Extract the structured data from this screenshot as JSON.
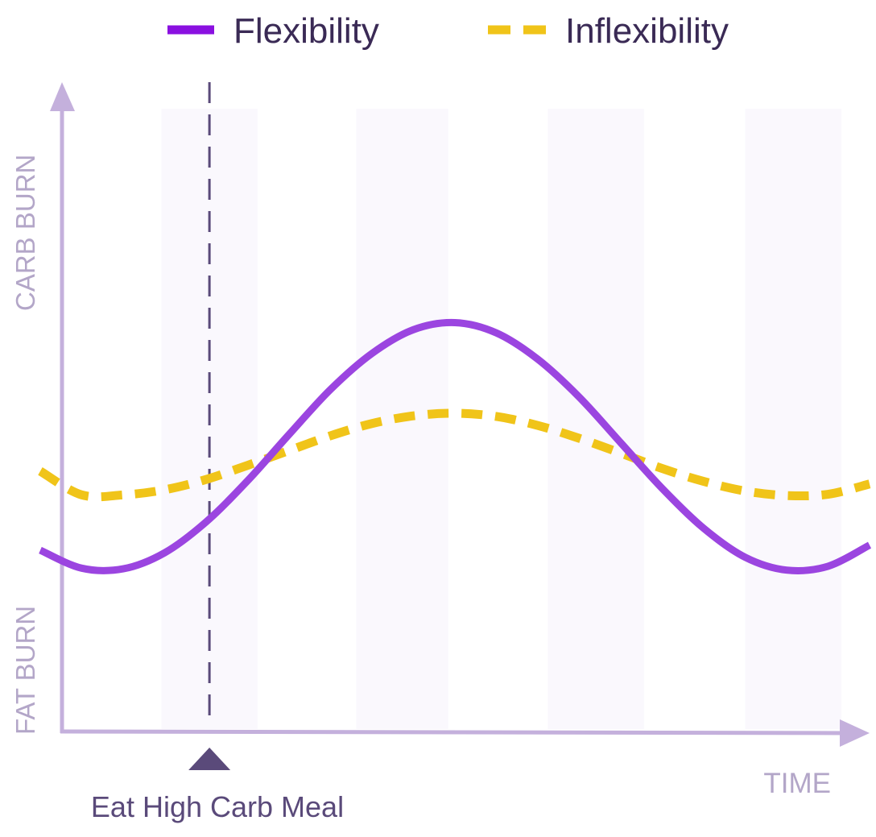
{
  "chart_data": {
    "type": "line",
    "title": "",
    "xlabel": "TIME",
    "ylabel_top": "CARB BURN",
    "ylabel_bottom": "FAT BURN",
    "xlim": [
      0,
      100
    ],
    "ylim": [
      0,
      100
    ],
    "grid": false,
    "legend_placement": "top",
    "x": [
      0,
      5,
      10,
      15,
      20,
      25,
      30,
      35,
      40,
      45,
      50,
      55,
      60,
      65,
      70,
      75,
      80,
      85,
      90,
      95,
      100
    ],
    "series": [
      {
        "name": "Flexibility",
        "style": "solid",
        "color": "#9b45e0",
        "values": [
          28.2,
          25.4,
          25.3,
          27.8,
          32.6,
          39.0,
          46.2,
          53.2,
          58.8,
          62.5,
          63.6,
          62.0,
          57.9,
          52.0,
          44.9,
          37.8,
          31.6,
          27.1,
          25.1,
          25.7,
          29.0
        ]
      },
      {
        "name": "Inflexibility",
        "style": "dashed",
        "color": "#f0c419",
        "values": [
          40.5,
          36.8,
          36.8,
          37.6,
          39.2,
          41.4,
          43.7,
          46.0,
          47.9,
          49.1,
          49.5,
          49.0,
          47.6,
          45.6,
          43.3,
          40.9,
          38.9,
          37.4,
          36.7,
          36.9,
          38.5
        ]
      }
    ],
    "shaded_bands": [
      [
        14.6,
        26.2
      ],
      [
        38.1,
        49.2
      ],
      [
        61.2,
        72.8
      ],
      [
        85,
        96.6
      ]
    ],
    "annotation": {
      "label": "Eat High Carb Meal",
      "x": 20.4
    },
    "colors": {
      "axis": "#c4b0dc",
      "axis_label": "#b3a6c8",
      "marker": "#5a4a7a",
      "legend_text": "#3a2a55",
      "band": "#faf8fd",
      "legend_flex": "#8a10e0"
    }
  }
}
